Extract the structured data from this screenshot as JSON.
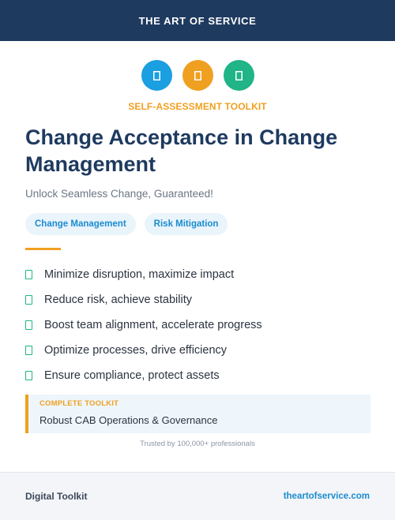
{
  "header": {
    "brand": "THE ART OF SERVICE"
  },
  "icons": [
    {
      "name": "tool-icon",
      "color": "#1a9fe0"
    },
    {
      "name": "tool-icon",
      "color": "#f0a020"
    },
    {
      "name": "tool-icon",
      "color": "#20b487"
    }
  ],
  "kicker": "SELF-ASSESSMENT TOOLKIT",
  "title": "Change Acceptance in Change Management",
  "subtitle": "Unlock Seamless Change, Guaranteed!",
  "tags": [
    "Change Management",
    "Risk Mitigation"
  ],
  "features": [
    "Minimize disruption, maximize impact",
    "Reduce risk, achieve stability",
    "Boost team alignment, accelerate progress",
    "Optimize processes, drive efficiency",
    "Ensure compliance, protect assets"
  ],
  "callout": {
    "label": "COMPLETE TOOLKIT",
    "text": "Robust CAB Operations & Governance"
  },
  "trust": "Trusted by 100,000+ professionals",
  "footer": {
    "left": "Digital Toolkit",
    "right": "theartofservice.com"
  },
  "colors": {
    "navy": "#1e3a5f",
    "accent": "#f0a020",
    "blue": "#1a8ccf",
    "green": "#20b487"
  }
}
